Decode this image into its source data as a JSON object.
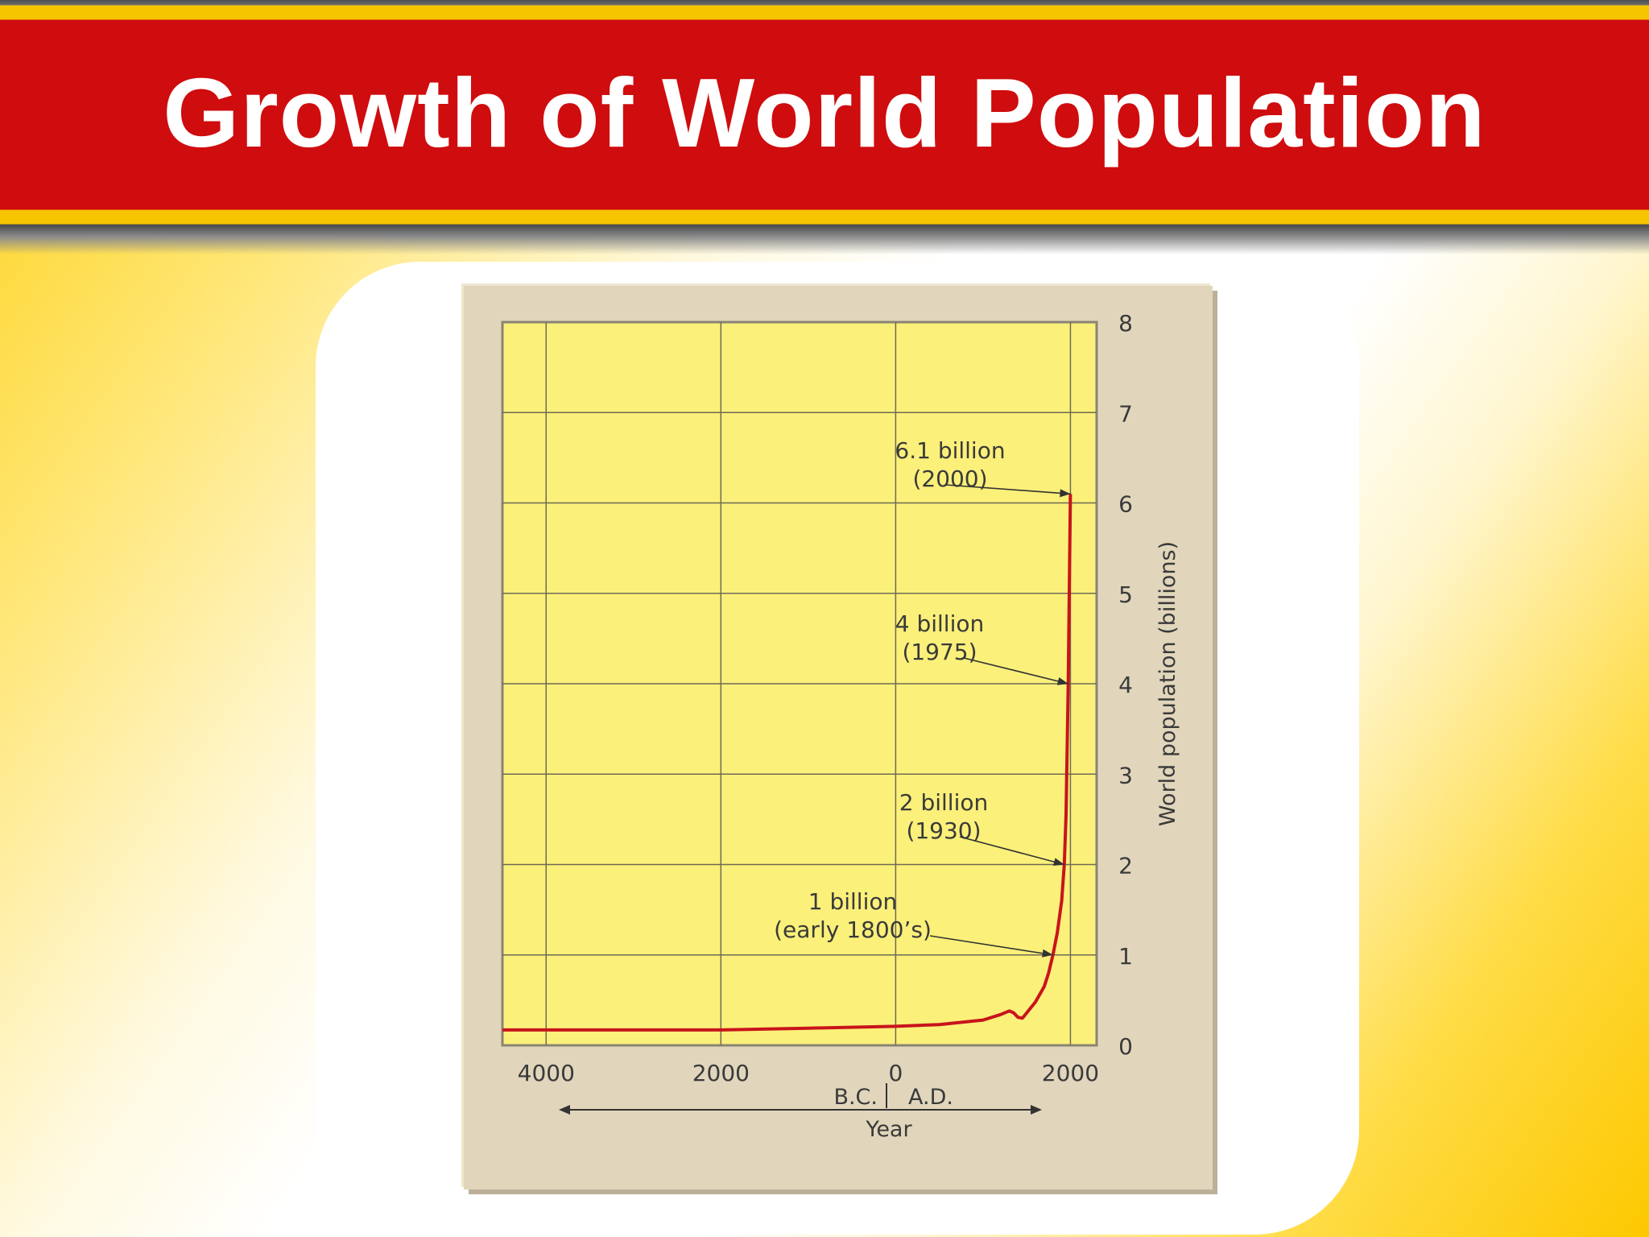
{
  "slide": {
    "title": "Growth of World Population"
  },
  "colors": {
    "title_band": "#cf0c0e",
    "title_stripe": "#f7c400",
    "plot_background": "#fbf07a",
    "frame": "#e1d6bc",
    "curve": "#c8141c"
  },
  "chart_data": {
    "type": "line",
    "title": "",
    "xlabel": "Year",
    "ylabel": "World population (billions)",
    "x_era_labels": [
      "B.C.",
      "A.D."
    ],
    "xlim": [
      -4500,
      2300
    ],
    "ylim": [
      0,
      8
    ],
    "x_ticks": [
      {
        "value": -4000,
        "label": "4000"
      },
      {
        "value": -2000,
        "label": "2000"
      },
      {
        "value": 0,
        "label": "0"
      },
      {
        "value": 2000,
        "label": "2000"
      }
    ],
    "y_ticks": [
      0,
      1,
      2,
      3,
      4,
      5,
      6,
      7,
      8
    ],
    "y_axis_position": "right",
    "grid": true,
    "series": [
      {
        "name": "",
        "x": [
          -4500,
          -4000,
          -3000,
          -2000,
          -1000,
          0,
          500,
          1000,
          1200,
          1300,
          1350,
          1400,
          1450,
          1500,
          1600,
          1700,
          1750,
          1800,
          1850,
          1900,
          1930,
          1950,
          1975,
          2000
        ],
        "y": [
          0.17,
          0.17,
          0.17,
          0.17,
          0.19,
          0.21,
          0.23,
          0.28,
          0.34,
          0.38,
          0.36,
          0.31,
          0.3,
          0.36,
          0.48,
          0.65,
          0.8,
          1.0,
          1.25,
          1.6,
          2.0,
          2.55,
          4.0,
          6.1
        ]
      }
    ],
    "annotations": [
      {
        "lines": [
          "6.1  billion",
          "(2000)"
        ],
        "x": 2000,
        "y": 6.1
      },
      {
        "lines": [
          "4  billion",
          "(1975)"
        ],
        "x": 1975,
        "y": 4.0
      },
      {
        "lines": [
          "2  billion",
          "(1930)"
        ],
        "x": 1930,
        "y": 2.0
      },
      {
        "lines": [
          "1  billion",
          "(early  1800’s)"
        ],
        "x": 1800,
        "y": 1.0
      }
    ]
  }
}
